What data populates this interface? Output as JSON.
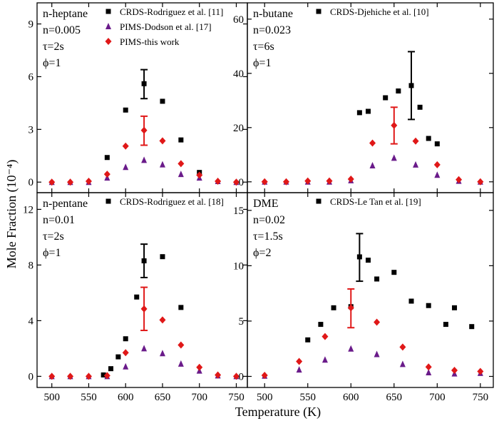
{
  "chart_data": [
    {
      "type": "scatter",
      "annotations": [
        "n-heptane",
        "n=0.005",
        "τ=2s",
        "ϕ=1"
      ],
      "xlim": [
        480,
        765
      ],
      "ylim": [
        -0.6,
        10.2
      ],
      "x_ticks": [
        500,
        550,
        600,
        650,
        700,
        750
      ],
      "y_ticks": [
        0,
        3,
        6,
        9
      ],
      "series": [
        {
          "name": "CRDS-Rodriguez et al. [11]",
          "marker": "square",
          "color": "#000000",
          "x": [
            575,
            600,
            625,
            650,
            675,
            700
          ],
          "y": [
            1.4,
            4.1,
            5.6,
            4.6,
            2.4,
            0.55
          ],
          "error_bars": [
            {
              "x": 625,
              "low": 4.75,
              "high": 6.4
            }
          ]
        },
        {
          "name": "PIMS-Dodson et al. [17]",
          "marker": "triangle",
          "color": "#6a1b8a",
          "x": [
            500,
            525,
            550,
            575,
            600,
            625,
            650,
            675,
            700,
            725,
            750
          ],
          "y": [
            0.0,
            0.0,
            0.0,
            0.25,
            0.85,
            1.25,
            1.0,
            0.45,
            0.25,
            0.05,
            0.0
          ]
        },
        {
          "name": "PIMS-this work",
          "marker": "diamond",
          "color": "#e01818",
          "x": [
            500,
            525,
            550,
            575,
            600,
            625,
            650,
            675,
            700,
            725,
            750
          ],
          "y": [
            0.0,
            0.0,
            0.05,
            0.45,
            2.05,
            2.95,
            2.35,
            1.05,
            0.4,
            0.05,
            0.0
          ],
          "error_bars": [
            {
              "x": 625,
              "low": 2.1,
              "high": 3.75
            }
          ]
        }
      ]
    },
    {
      "type": "scatter",
      "annotations": [
        "n-butane",
        "n=0.023",
        "τ=6s",
        "ϕ=1"
      ],
      "xlim": [
        480,
        765
      ],
      "ylim": [
        -4,
        66
      ],
      "x_ticks": [
        500,
        550,
        600,
        650,
        700,
        750
      ],
      "y_ticks": [
        0,
        20,
        40,
        60
      ],
      "series": [
        {
          "name": "CRDS-Djehiche et al. [10]",
          "marker": "square",
          "color": "#000000",
          "x": [
            610,
            620,
            640,
            655,
            670,
            680,
            690,
            700
          ],
          "y": [
            25.5,
            26.0,
            31.0,
            33.5,
            35.5,
            27.5,
            16.0,
            14.0
          ],
          "error_bars": [
            {
              "x": 670,
              "low": 23.0,
              "high": 48.0
            }
          ]
        },
        {
          "name": "",
          "marker": "triangle",
          "color": "#6a1b8a",
          "x": [
            500,
            525,
            550,
            575,
            600,
            625,
            650,
            675,
            700,
            725,
            750
          ],
          "y": [
            0.0,
            0.0,
            0.0,
            0.0,
            0.5,
            6.0,
            8.8,
            6.3,
            2.5,
            0.3,
            0.0
          ]
        },
        {
          "name": "",
          "marker": "diamond",
          "color": "#e01818",
          "x": [
            500,
            525,
            550,
            575,
            600,
            625,
            650,
            675,
            700,
            725,
            750
          ],
          "y": [
            0.0,
            0.0,
            0.3,
            0.3,
            1.0,
            14.3,
            20.8,
            15.0,
            6.3,
            0.8,
            0.0
          ],
          "error_bars": [
            {
              "x": 650,
              "low": 14.0,
              "high": 27.5
            }
          ]
        }
      ]
    },
    {
      "type": "scatter",
      "annotations": [
        "n-pentane",
        "n=0.01",
        "τ=2s",
        "ϕ=1"
      ],
      "xlim": [
        480,
        765
      ],
      "ylim": [
        -0.8,
        13.2
      ],
      "x_ticks": [
        500,
        550,
        600,
        650,
        700,
        750
      ],
      "y_ticks": [
        0,
        4,
        8,
        12
      ],
      "series": [
        {
          "name": "CRDS-Rodriguez et al. [18]",
          "marker": "square",
          "color": "#000000",
          "x": [
            570,
            580,
            590,
            600,
            615,
            625,
            650,
            675
          ],
          "y": [
            0.1,
            0.55,
            1.4,
            2.7,
            5.7,
            8.3,
            8.6,
            4.95
          ],
          "error_bars": [
            {
              "x": 625,
              "low": 7.1,
              "high": 9.5
            }
          ]
        },
        {
          "name": "",
          "marker": "triangle",
          "color": "#6a1b8a",
          "x": [
            500,
            525,
            550,
            575,
            600,
            625,
            650,
            675,
            700,
            725,
            750
          ],
          "y": [
            0.0,
            0.0,
            0.0,
            0.0,
            0.7,
            2.0,
            1.65,
            0.9,
            0.4,
            0.05,
            0.0
          ]
        },
        {
          "name": "",
          "marker": "diamond",
          "color": "#e01818",
          "x": [
            500,
            525,
            550,
            575,
            600,
            625,
            650,
            675,
            700,
            725,
            750
          ],
          "y": [
            0.0,
            0.0,
            0.0,
            0.05,
            1.7,
            4.85,
            4.05,
            2.25,
            0.65,
            0.1,
            0.0
          ],
          "error_bars": [
            {
              "x": 625,
              "low": 3.3,
              "high": 6.4
            }
          ]
        }
      ]
    },
    {
      "type": "scatter",
      "annotations": [
        "DME",
        "n=0.02",
        "τ=1.5s",
        "ϕ=2"
      ],
      "xlim": [
        480,
        765
      ],
      "ylim": [
        -1.0,
        16.6
      ],
      "x_ticks": [
        500,
        550,
        600,
        650,
        700,
        750
      ],
      "y_ticks": [
        0,
        5,
        10,
        15
      ],
      "series": [
        {
          "name": "CRDS-Le Tan et al. [19]",
          "marker": "square",
          "color": "#000000",
          "x": [
            550,
            565,
            580,
            600,
            610,
            620,
            630,
            650,
            670,
            690,
            710,
            720,
            740
          ],
          "y": [
            3.3,
            4.7,
            6.2,
            6.3,
            10.8,
            10.5,
            8.8,
            9.4,
            6.8,
            6.4,
            4.7,
            6.2,
            4.5
          ],
          "error_bars": [
            {
              "x": 610,
              "low": 8.6,
              "high": 12.9
            }
          ]
        },
        {
          "name": "",
          "marker": "triangle",
          "color": "#6a1b8a",
          "x": [
            500,
            540,
            570,
            600,
            630,
            660,
            690,
            720,
            750
          ],
          "y": [
            0.05,
            0.6,
            1.5,
            2.5,
            2.0,
            1.1,
            0.35,
            0.25,
            0.3
          ]
        },
        {
          "name": "",
          "marker": "diamond",
          "color": "#e01818",
          "x": [
            500,
            540,
            570,
            600,
            630,
            660,
            690,
            720,
            750
          ],
          "y": [
            0.1,
            1.35,
            3.6,
            6.2,
            4.9,
            2.65,
            0.85,
            0.55,
            0.45
          ],
          "error_bars": [
            {
              "x": 600,
              "low": 4.4,
              "high": 7.9
            }
          ]
        }
      ]
    }
  ],
  "axis": {
    "xlabel": "Temperature (K)",
    "ylabel": "Mole Fraction (10⁻⁴)"
  }
}
